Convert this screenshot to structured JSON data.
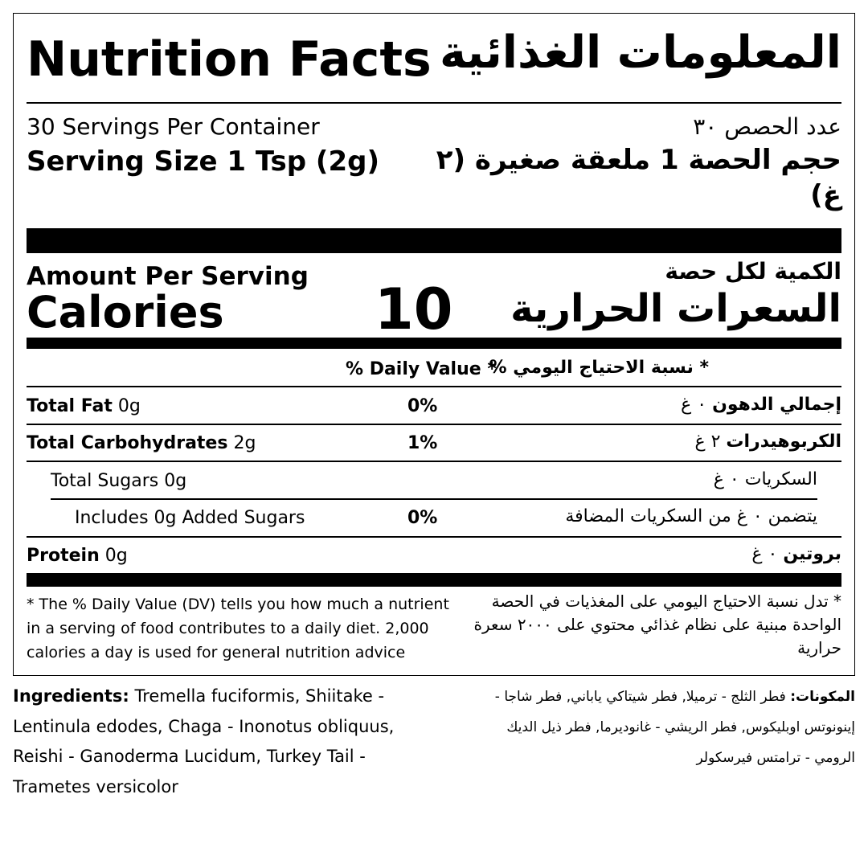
{
  "title": {
    "en": "Nutrition Facts",
    "ar": "المعلومات الغذائية"
  },
  "servings": {
    "en": "30 Servings Per Container",
    "ar": "عدد الحصص ٣٠"
  },
  "serving_size": {
    "en": "Serving Size 1 Tsp (2g)",
    "ar_line1": "حجم الحصة 1 ملعقة صغيرة (٢",
    "ar_line2": "غ)"
  },
  "amount": {
    "en": "Amount Per Serving",
    "ar": "الكمية لكل حصة"
  },
  "calories": {
    "en": "Calories",
    "value": "10",
    "ar": "السعرات الحرارية"
  },
  "dv_header": {
    "en": "% Daily Value *",
    "ar": "* نسبة الاحتياج اليومي %"
  },
  "rows": [
    {
      "en_bold": "Total Fat",
      "en_amt": "0g",
      "dv": "0%",
      "ar_bold": "إجمالي الدهون",
      "ar_amt": "٠ غ"
    },
    {
      "en_bold": "Total Carbohydrates",
      "en_amt": "2g",
      "dv": "1%",
      "ar_bold": "الكربوهيدرات",
      "ar_amt": "٢ غ"
    },
    {
      "en": "Total Sugars 0g",
      "dv": "",
      "ar": "السكريات ٠ غ"
    },
    {
      "en": "Includes 0g Added Sugars",
      "dv": "0%",
      "ar": "يتضمن ٠ غ من السكريات المضافة"
    },
    {
      "en_bold": "Protein",
      "en_amt": "0g",
      "dv": "",
      "ar_bold": "بروتين",
      "ar_amt": "٠ غ"
    }
  ],
  "footnote": {
    "en": [
      "* The % Daily Value (DV) tells you how much a nutrient",
      "in a serving of food contributes to a daily diet. 2,000",
      "calories a day is used for general nutrition advice"
    ],
    "ar": [
      "* تدل نسبة الاحتياج اليومي على المغذيات في الحصة",
      "الواحدة مبنية على نظام غذائي محتوي على ٢٠٠٠ سعرة",
      "حرارية"
    ]
  },
  "ingredients": {
    "en_label": "Ingredients:",
    "en": [
      "Tremella fuciformis, Shiitake -",
      "Lentinula edodes, Chaga - Inonotus obliquus,",
      "Reishi - Ganoderma Lucidum, Turkey Tail -",
      "Trametes versicolor"
    ],
    "ar_label": "المكونات:",
    "ar": [
      "فطر الثلج - ترميلا, فطر شيتاكي ياباني, فطر شاجا -",
      "إينونوتس اوبليكوس, فطر الريشي - غانوديرما, فطر ذيل الديك",
      "الرومي - ترامتس فيرسكولر"
    ]
  }
}
